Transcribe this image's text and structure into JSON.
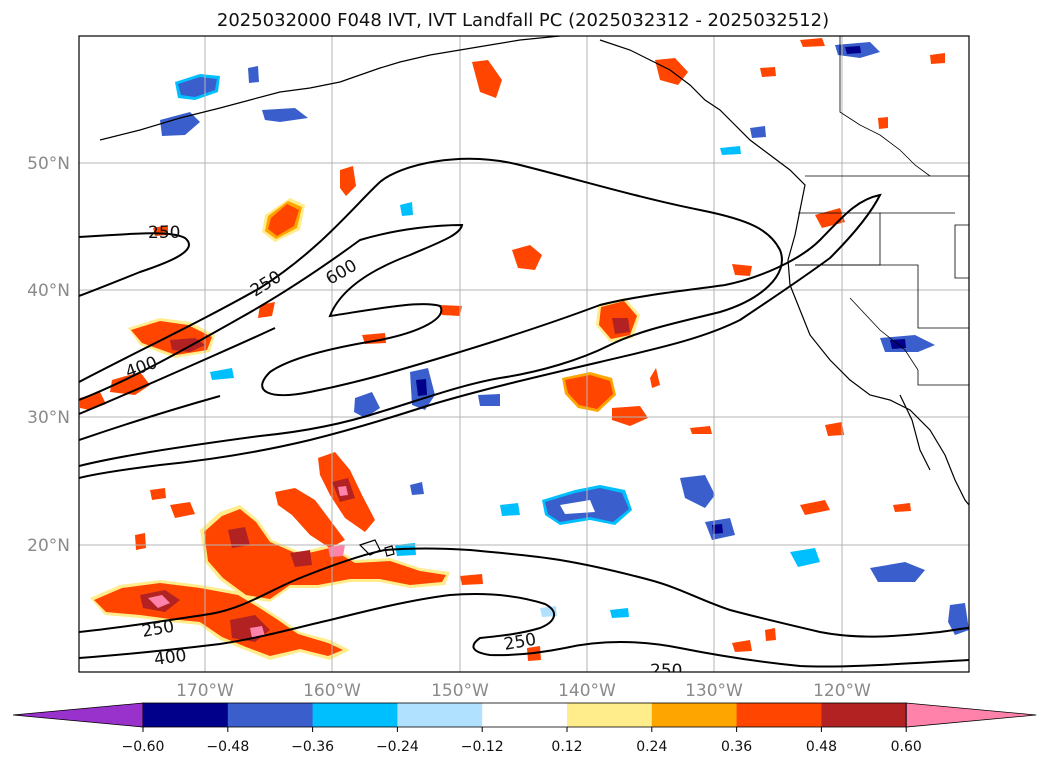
{
  "title": "2025032000 F048 IVT, IVT Landfall PC (2025032312 - 2025032512)",
  "map": {
    "lat_labels": [
      "50°N",
      "40°N",
      "30°N",
      "20°N"
    ],
    "lon_labels": [
      "170°W",
      "160°W",
      "150°W",
      "140°W",
      "130°W",
      "120°W"
    ],
    "contour_labels": [
      "250",
      "250",
      "600",
      "400",
      "250",
      "400",
      "250",
      "250"
    ],
    "contour_color": "#000000",
    "grid": true
  },
  "colorbar": {
    "ticks": [
      "−0.60",
      "−0.48",
      "−0.36",
      "−0.24",
      "−0.12",
      "0.12",
      "0.24",
      "0.36",
      "0.48",
      "0.60"
    ],
    "colors": [
      "#9932CC",
      "#00008B",
      "#3A5FCD",
      "#00BFFF",
      "#B0E2FF",
      "#FFFFFF",
      "#FFEC8B",
      "#FFA500",
      "#FF4500",
      "#B22222",
      "#FF82AB"
    ],
    "extend": "both"
  }
}
